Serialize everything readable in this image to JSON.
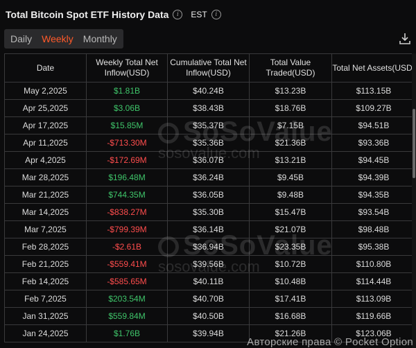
{
  "header": {
    "title": "Total Bitcoin Spot ETF History Data",
    "timezone": "EST"
  },
  "tabs": [
    {
      "label": "Daily",
      "active": false
    },
    {
      "label": "Weekly",
      "active": true
    },
    {
      "label": "Monthly",
      "active": false
    }
  ],
  "table": {
    "columns": [
      "Date",
      "Weekly Total Net Inflow(USD)",
      "Cumulative Total Net Inflow(USD)",
      "Total Value Traded(USD)",
      "Total Net Assets(USD)"
    ],
    "rows": [
      [
        "May 2,2025",
        "$1.81B",
        "$40.24B",
        "$13.23B",
        "$113.15B"
      ],
      [
        "Apr 25,2025",
        "$3.06B",
        "$38.43B",
        "$18.76B",
        "$109.27B"
      ],
      [
        "Apr 17,2025",
        "$15.85M",
        "$35.37B",
        "$7.15B",
        "$94.51B"
      ],
      [
        "Apr 11,2025",
        "-$713.30M",
        "$35.36B",
        "$21.36B",
        "$93.36B"
      ],
      [
        "Apr 4,2025",
        "-$172.69M",
        "$36.07B",
        "$13.21B",
        "$94.45B"
      ],
      [
        "Mar 28,2025",
        "$196.48M",
        "$36.24B",
        "$9.45B",
        "$94.39B"
      ],
      [
        "Mar 21,2025",
        "$744.35M",
        "$36.05B",
        "$9.48B",
        "$94.35B"
      ],
      [
        "Mar 14,2025",
        "-$838.27M",
        "$35.30B",
        "$15.47B",
        "$93.54B"
      ],
      [
        "Mar 7,2025",
        "-$799.39M",
        "$36.14B",
        "$21.07B",
        "$98.48B"
      ],
      [
        "Feb 28,2025",
        "-$2.61B",
        "$36.94B",
        "$23.35B",
        "$95.38B"
      ],
      [
        "Feb 21,2025",
        "-$559.41M",
        "$39.56B",
        "$10.72B",
        "$110.80B"
      ],
      [
        "Feb 14,2025",
        "-$585.65M",
        "$40.11B",
        "$10.48B",
        "$114.44B"
      ],
      [
        "Feb 7,2025",
        "$203.54M",
        "$40.70B",
        "$17.41B",
        "$113.09B"
      ],
      [
        "Jan 31,2025",
        "$559.84M",
        "$40.50B",
        "$16.68B",
        "$119.66B"
      ],
      [
        "Jan 24,2025",
        "$1.76B",
        "$39.94B",
        "$21.26B",
        "$123.06B"
      ]
    ]
  },
  "watermark": {
    "brand": "SoSoValue",
    "domain": "sosovalue.com"
  },
  "copyright": "Авторские права © Pocket Option",
  "colors": {
    "accent": "#ff5a2a",
    "positive": "#3fc56a",
    "negative": "#ff4d4d"
  },
  "icons": {
    "info": "info-circle-icon",
    "download": "download-icon"
  }
}
